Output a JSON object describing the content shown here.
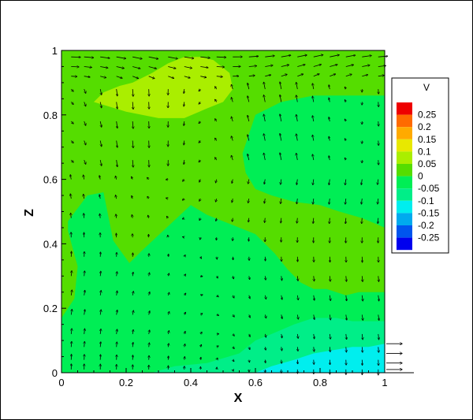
{
  "chart_data": {
    "type": "heatmap",
    "subtype": "filled-contour-with-vector-field",
    "title": "",
    "xlabel": "X",
    "ylabel": "Z",
    "xlim": [
      0,
      1
    ],
    "ylim": [
      0,
      1
    ],
    "x_ticks": [
      0,
      0.2,
      0.4,
      0.6,
      0.8,
      1
    ],
    "x_tick_labels": [
      "0",
      "0.2",
      "0.4",
      "0.6",
      "0.8",
      "1"
    ],
    "y_ticks": [
      0,
      0.2,
      0.4,
      0.6,
      0.8,
      1
    ],
    "y_tick_labels": [
      "0",
      "0.2",
      "0.4",
      "0.6",
      "0.8",
      "1"
    ],
    "grid": false,
    "colorbar": {
      "title": "V",
      "placement": "right",
      "levels": [
        0.25,
        0.2,
        0.15,
        0.1,
        0.05,
        0,
        -0.05,
        -0.1,
        -0.15,
        -0.2,
        -0.25
      ],
      "labels": [
        "0.25",
        "0.2",
        "0.15",
        "0.1",
        "0.05",
        "0",
        "-0.05",
        "-0.1",
        "-0.15",
        "-0.2",
        "-0.25"
      ],
      "colors": [
        "#ee0000",
        "#ff6a00",
        "#ffaa00",
        "#e8e800",
        "#aaee00",
        "#55dd00",
        "#00ee55",
        "#00ee88",
        "#00eeee",
        "#00aaee",
        "#0055ee",
        "#0000ee"
      ]
    },
    "contour_regions": [
      {
        "level": 0,
        "color": "#55dd00",
        "polygon": [
          [
            0,
            0
          ],
          [
            1,
            0
          ],
          [
            1,
            1
          ],
          [
            0,
            1
          ]
        ]
      },
      {
        "level": -0.05,
        "color": "#00ee55",
        "polygon": [
          [
            0,
            0.1
          ],
          [
            0,
            0.17
          ],
          [
            0.04,
            0.23
          ],
          [
            0.05,
            0.33
          ],
          [
            0.02,
            0.44
          ],
          [
            0.02,
            0.47
          ],
          [
            0.08,
            0.55
          ],
          [
            0.13,
            0.56
          ],
          [
            0.16,
            0.41
          ],
          [
            0.21,
            0.34
          ],
          [
            0.25,
            0.38
          ],
          [
            0.4,
            0.52
          ],
          [
            0.45,
            0.49
          ],
          [
            0.5,
            0.47
          ],
          [
            0.55,
            0.45
          ],
          [
            0.6,
            0.43
          ],
          [
            0.66,
            0.37
          ],
          [
            0.7,
            0.32
          ],
          [
            0.74,
            0.28
          ],
          [
            0.78,
            0.26
          ],
          [
            0.82,
            0.26
          ],
          [
            0.88,
            0.24
          ],
          [
            0.92,
            0.25
          ],
          [
            0.97,
            0.25
          ],
          [
            1,
            0.25
          ],
          [
            1,
            0
          ],
          [
            0,
            0
          ]
        ]
      },
      {
        "level": -0.05,
        "color": "#00ee55",
        "polygon": [
          [
            0.56,
            0.68
          ],
          [
            0.6,
            0.8
          ],
          [
            0.68,
            0.84
          ],
          [
            0.78,
            0.86
          ],
          [
            0.86,
            0.86
          ],
          [
            0.94,
            0.86
          ],
          [
            1,
            0.86
          ],
          [
            1,
            0.45
          ],
          [
            0.93,
            0.48
          ],
          [
            0.86,
            0.5
          ],
          [
            0.8,
            0.52
          ],
          [
            0.72,
            0.53
          ],
          [
            0.65,
            0.55
          ],
          [
            0.6,
            0.57
          ],
          [
            0.57,
            0.62
          ]
        ]
      },
      {
        "level": -0.1,
        "color": "#00ee88",
        "polygon": [
          [
            0.28,
            0
          ],
          [
            0.35,
            0.02
          ],
          [
            0.45,
            0.03
          ],
          [
            0.55,
            0.06
          ],
          [
            0.6,
            0.1
          ],
          [
            0.65,
            0.12
          ],
          [
            0.72,
            0.15
          ],
          [
            0.78,
            0.17
          ],
          [
            0.85,
            0.17
          ],
          [
            0.9,
            0.16
          ],
          [
            0.95,
            0.16
          ],
          [
            1,
            0.16
          ],
          [
            1,
            0
          ],
          [
            0.28,
            0
          ]
        ]
      },
      {
        "level": -0.15,
        "color": "#00eeee",
        "polygon": [
          [
            0.6,
            0
          ],
          [
            0.65,
            0.02
          ],
          [
            0.72,
            0.04
          ],
          [
            0.78,
            0.06
          ],
          [
            0.84,
            0.07
          ],
          [
            0.9,
            0.08
          ],
          [
            0.95,
            0.08
          ],
          [
            1,
            0.09
          ],
          [
            1,
            0
          ],
          [
            0.6,
            0
          ]
        ]
      },
      {
        "level": 0.05,
        "color": "#aaee00",
        "polygon": [
          [
            0.1,
            0.84
          ],
          [
            0.13,
            0.87
          ],
          [
            0.18,
            0.89
          ],
          [
            0.22,
            0.9
          ],
          [
            0.28,
            0.93
          ],
          [
            0.33,
            0.96
          ],
          [
            0.38,
            0.98
          ],
          [
            0.43,
            0.98
          ],
          [
            0.47,
            0.97
          ],
          [
            0.52,
            0.93
          ],
          [
            0.53,
            0.88
          ],
          [
            0.5,
            0.84
          ],
          [
            0.45,
            0.82
          ],
          [
            0.38,
            0.79
          ],
          [
            0.3,
            0.79
          ],
          [
            0.2,
            0.81
          ],
          [
            0.1,
            0.84
          ]
        ]
      }
    ],
    "vector_field": {
      "x_positions": [
        0.03,
        0.07,
        0.12,
        0.17,
        0.22,
        0.27,
        0.33,
        0.38,
        0.43,
        0.48,
        0.53,
        0.58,
        0.63,
        0.68,
        0.73,
        0.78,
        0.83,
        0.88,
        0.93,
        0.98
      ],
      "z_positions": [
        0.98,
        0.95,
        0.92,
        0.88,
        0.84,
        0.78,
        0.72,
        0.66,
        0.6,
        0.54,
        0.48,
        0.42,
        0.36,
        0.3,
        0.24,
        0.18,
        0.12,
        0.08,
        0.04,
        0.01
      ],
      "description_visible": "velocity arrows; strong rightward flow near Z=1 and near Z=0 beyond X=1"
    }
  }
}
